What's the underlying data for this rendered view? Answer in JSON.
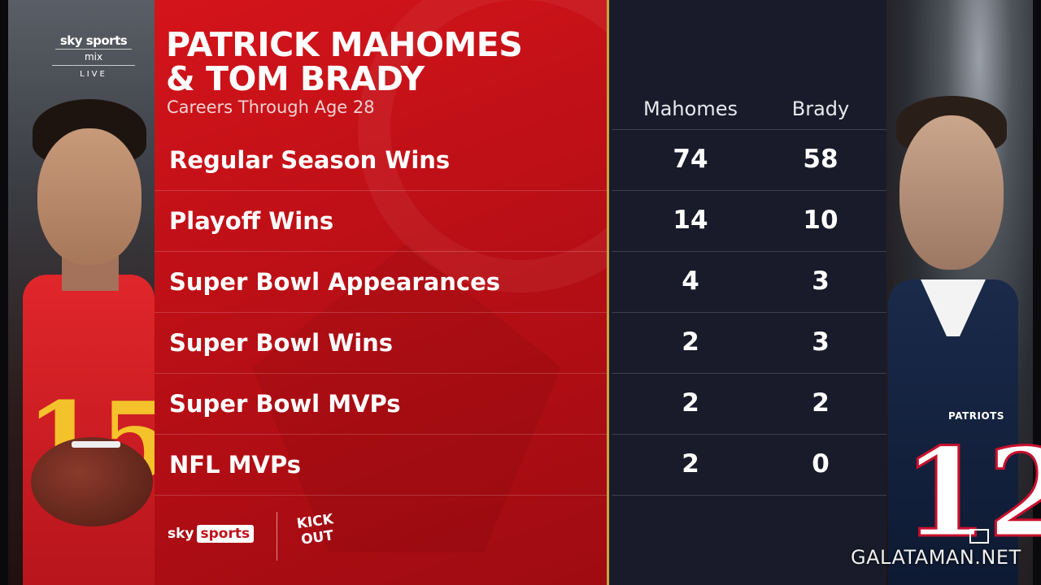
{
  "broadcast": {
    "channel_brand": "sky sports",
    "channel_sub": "mix",
    "live_label": "LIVE",
    "bottom_logo_sky": "sky",
    "bottom_logo_sports": "sports",
    "bottom_logo_kick_line1": "KICK",
    "bottom_logo_kick_line2": "OUT"
  },
  "graphic": {
    "title_line1": "PATRICK MAHOMES",
    "title_line2": "& TOM BRADY",
    "subtitle": "Careers Through Age 28",
    "columns": [
      "Mahomes",
      "Brady"
    ],
    "rows": [
      {
        "label": "Regular Season Wins",
        "mahomes": "74",
        "brady": "58"
      },
      {
        "label": "Playoff Wins",
        "mahomes": "14",
        "brady": "10"
      },
      {
        "label": "Super Bowl Appearances",
        "mahomes": "4",
        "brady": "3"
      },
      {
        "label": "Super Bowl Wins",
        "mahomes": "2",
        "brady": "3"
      },
      {
        "label": "Super Bowl MVPs",
        "mahomes": "2",
        "brady": "2"
      },
      {
        "label": "NFL MVPs",
        "mahomes": "2",
        "brady": "0"
      }
    ]
  },
  "players": {
    "left_number": "15",
    "right_number": "12",
    "right_team": "PATRIOTS"
  },
  "watermark": "GALATAMAN.NET",
  "colors": {
    "red_panel": "#c41219",
    "dark_panel": "#191b2a",
    "gold_divider": "#c9a441"
  }
}
